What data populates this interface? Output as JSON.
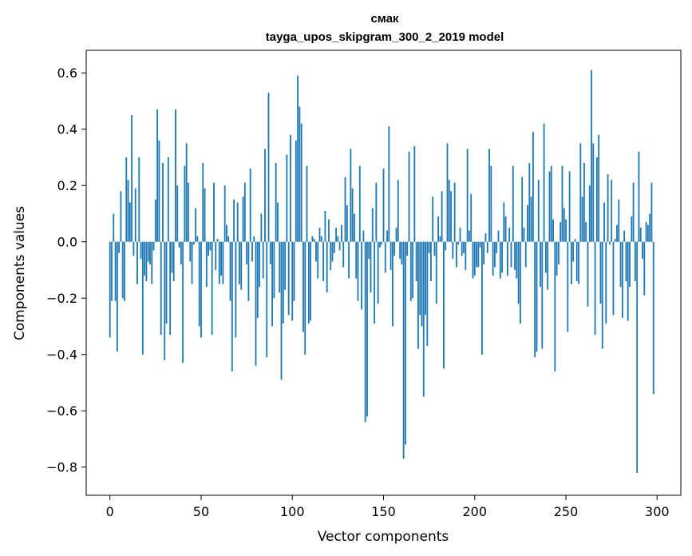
{
  "chart_data": {
    "type": "bar",
    "title": "смак",
    "subtitle": "tayga_upos_skipgram_300_2_2019 model",
    "xlabel": "Vector components",
    "ylabel": "Components values",
    "xlim": [
      -13,
      313
    ],
    "ylim": [
      -0.9,
      0.68
    ],
    "xticks": [
      0,
      50,
      100,
      150,
      200,
      250,
      300
    ],
    "yticks": [
      -0.8,
      -0.6,
      -0.4,
      -0.2,
      0.0,
      0.2,
      0.4,
      0.6
    ],
    "ytick_labels": [
      "−0.8",
      "−0.6",
      "−0.4",
      "−0.2",
      "0.0",
      "0.2",
      "0.4",
      "0.6"
    ],
    "bar_color": "#1f77b4",
    "grid": false,
    "legend": "none",
    "values": [
      -0.34,
      -0.21,
      0.1,
      -0.21,
      -0.39,
      -0.04,
      0.18,
      -0.2,
      -0.21,
      0.3,
      0.22,
      0.14,
      0.45,
      -0.05,
      0.19,
      -0.15,
      0.3,
      -0.06,
      -0.4,
      -0.12,
      -0.14,
      -0.07,
      -0.08,
      -0.15,
      -0.03,
      0.15,
      0.47,
      0.36,
      -0.33,
      0.28,
      -0.42,
      -0.29,
      0.3,
      -0.33,
      -0.11,
      -0.14,
      0.47,
      0.2,
      -0.02,
      -0.08,
      -0.43,
      0.27,
      0.35,
      0.21,
      -0.07,
      -0.15,
      -0.01,
      0.12,
      0.02,
      -0.3,
      -0.34,
      0.28,
      0.19,
      -0.16,
      -0.05,
      -0.03,
      -0.33,
      0.21,
      -0.1,
      0.01,
      -0.15,
      -0.12,
      -0.15,
      0.2,
      0.06,
      0.02,
      -0.21,
      -0.46,
      0.15,
      -0.34,
      0.14,
      -0.15,
      -0.17,
      0.16,
      0.21,
      -0.08,
      -0.21,
      0.26,
      -0.07,
      0.02,
      -0.44,
      -0.27,
      -0.16,
      0.1,
      -0.13,
      0.33,
      -0.41,
      0.53,
      -0.08,
      -0.3,
      -0.2,
      0.28,
      0.14,
      -0.18,
      -0.49,
      -0.29,
      -0.17,
      0.31,
      -0.26,
      0.38,
      -0.28,
      -0.21,
      0.36,
      0.59,
      0.48,
      0.42,
      -0.32,
      -0.4,
      0.27,
      -0.29,
      -0.28,
      0.02,
      0.01,
      -0.07,
      -0.13,
      0.05,
      0.02,
      -0.14,
      0.11,
      -0.18,
      0.08,
      -0.1,
      -0.07,
      -0.04,
      0.05,
      0.02,
      -0.03,
      0.06,
      -0.09,
      0.23,
      0.13,
      -0.13,
      0.33,
      0.19,
      0.1,
      -0.13,
      -0.21,
      0.27,
      -0.24,
      0.04,
      -0.64,
      -0.62,
      -0.06,
      -0.18,
      0.12,
      -0.29,
      0.21,
      -0.22,
      -0.02,
      -0.01,
      0.26,
      -0.11,
      0.04,
      0.41,
      -0.1,
      -0.3,
      -0.05,
      0.05,
      0.22,
      -0.06,
      -0.08,
      -0.77,
      -0.72,
      -0.05,
      0.32,
      -0.21,
      -0.2,
      0.34,
      -0.14,
      -0.38,
      -0.26,
      -0.3,
      -0.55,
      -0.26,
      -0.37,
      -0.04,
      -0.14,
      0.16,
      -0.05,
      -0.22,
      0.09,
      0.02,
      0.18,
      -0.45,
      -0.03,
      0.35,
      0.22,
      0.18,
      -0.06,
      0.21,
      -0.09,
      -0.01,
      0.05,
      -0.05,
      -0.04,
      -0.1,
      0.33,
      0.04,
      0.17,
      -0.13,
      -0.12,
      -0.09,
      -0.09,
      -0.02,
      -0.4,
      -0.08,
      0.03,
      -0.04,
      0.33,
      0.27,
      -0.12,
      -0.09,
      -0.04,
      0.04,
      -0.13,
      -0.11,
      0.14,
      0.09,
      -0.12,
      0.05,
      -0.09,
      0.27,
      -0.1,
      -0.13,
      -0.22,
      -0.29,
      0.23,
      0.05,
      -0.09,
      0.13,
      0.28,
      0.16,
      0.39,
      -0.41,
      -0.39,
      0.22,
      -0.16,
      -0.38,
      0.42,
      -0.11,
      -0.17,
      0.25,
      0.27,
      0.08,
      -0.46,
      -0.12,
      -0.08,
      0.07,
      0.27,
      0.12,
      0.08,
      -0.32,
      0.25,
      -0.15,
      -0.07,
      0.01,
      -0.14,
      -0.15,
      0.35,
      0.16,
      0.28,
      0.07,
      -0.23,
      0.2,
      0.61,
      0.35,
      -0.33,
      0.3,
      0.38,
      -0.22,
      -0.38,
      0.14,
      -0.29,
      0.24,
      -0.01,
      0.22,
      -0.26,
      0.01,
      0.06,
      0.15,
      -0.16,
      -0.27,
      0.04,
      -0.14,
      -0.28,
      -0.16,
      0.09,
      0.21,
      -0.14,
      -0.82,
      0.32,
      0.05,
      -0.06,
      -0.19,
      0.07,
      0.06,
      0.1,
      0.21,
      -0.54
    ]
  }
}
